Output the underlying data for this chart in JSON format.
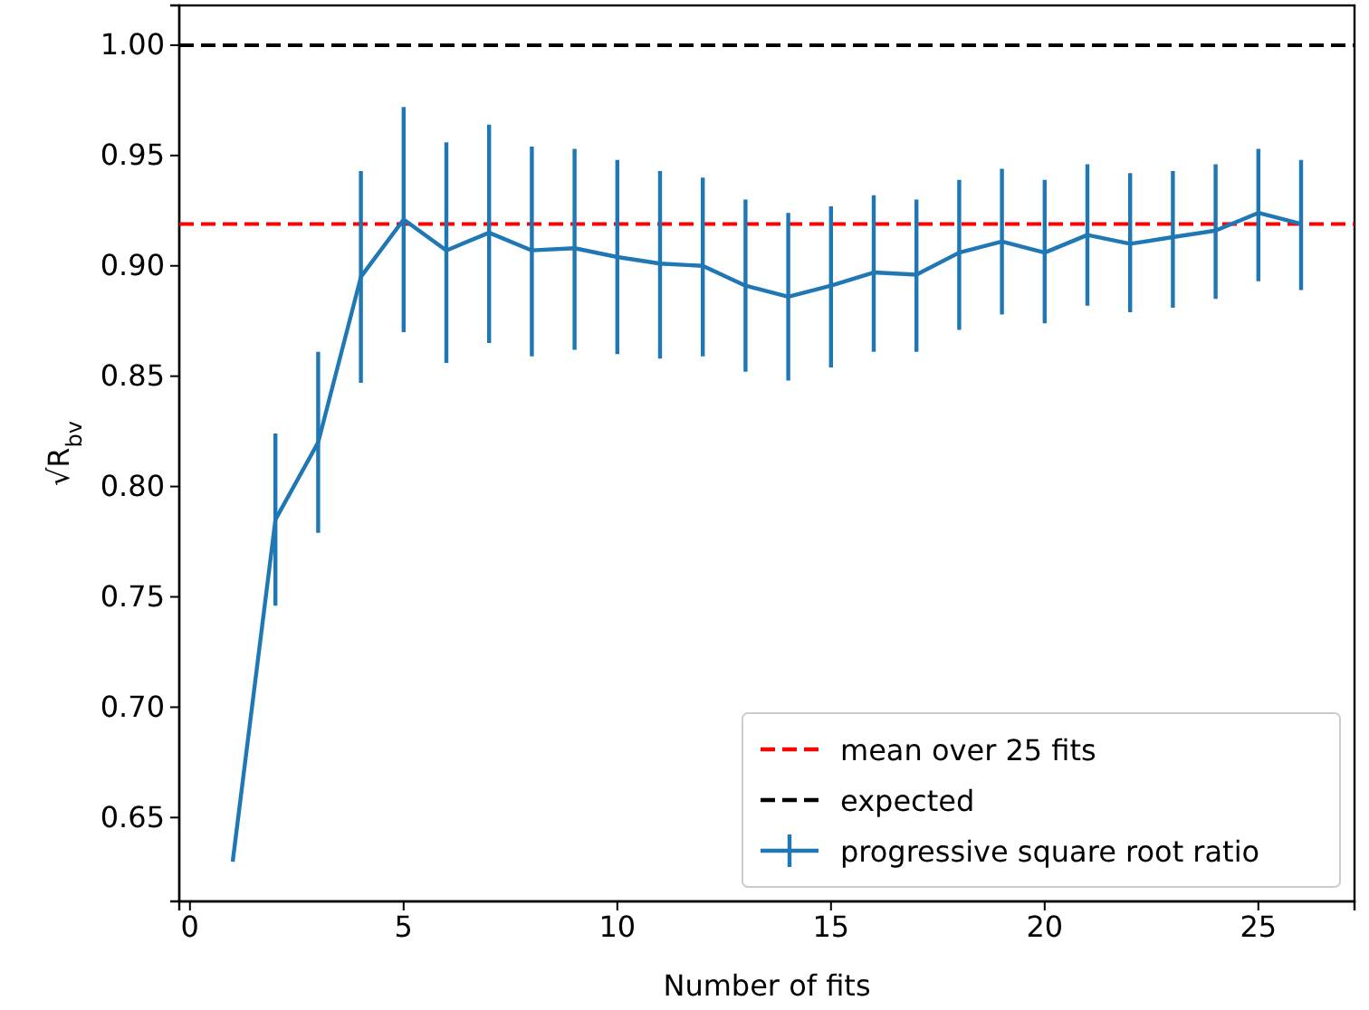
{
  "chart_data": {
    "type": "line",
    "xlabel": "Number of fits",
    "ylabel": "√R$_{bv}$",
    "x": [
      1,
      2,
      3,
      4,
      5,
      6,
      7,
      8,
      9,
      10,
      11,
      12,
      13,
      14,
      15,
      16,
      17,
      18,
      19,
      20,
      21,
      22,
      23,
      24,
      25,
      26
    ],
    "series": [
      {
        "name": "progressive square root ratio",
        "color": "#1f77b4",
        "values": [
          0.63,
          0.785,
          0.82,
          0.895,
          0.921,
          0.907,
          0.915,
          0.907,
          0.908,
          0.904,
          0.901,
          0.9,
          0.891,
          0.886,
          0.891,
          0.897,
          0.896,
          0.906,
          0.911,
          0.906,
          0.914,
          0.91,
          0.913,
          0.916,
          0.924,
          0.919
        ],
        "errors": [
          null,
          [
            0.746,
            0.824
          ],
          [
            0.779,
            0.861
          ],
          [
            0.847,
            0.943
          ],
          [
            0.87,
            0.972
          ],
          [
            0.856,
            0.956
          ],
          [
            0.865,
            0.964
          ],
          [
            0.859,
            0.954
          ],
          [
            0.862,
            0.953
          ],
          [
            0.86,
            0.948
          ],
          [
            0.858,
            0.943
          ],
          [
            0.859,
            0.94
          ],
          [
            0.852,
            0.93
          ],
          [
            0.848,
            0.924
          ],
          [
            0.854,
            0.927
          ],
          [
            0.861,
            0.932
          ],
          [
            0.861,
            0.93
          ],
          [
            0.871,
            0.939
          ],
          [
            0.878,
            0.944
          ],
          [
            0.874,
            0.939
          ],
          [
            0.882,
            0.946
          ],
          [
            0.879,
            0.942
          ],
          [
            0.881,
            0.943
          ],
          [
            0.885,
            0.946
          ],
          [
            0.893,
            0.953
          ],
          [
            0.889,
            0.948
          ]
        ]
      }
    ],
    "ref_lines": [
      {
        "axis": "y",
        "value": 0.919,
        "label": "mean over 25 fits",
        "color": "#ff0000",
        "line_style": "dashed"
      },
      {
        "axis": "y",
        "value": 1.0,
        "label": "expected",
        "color": "#000000",
        "line_style": "dashed"
      }
    ],
    "xlim": [
      -0.25,
      27.25
    ],
    "ylim": [
      0.612,
      1.018
    ],
    "xticks": [
      0,
      5,
      10,
      15,
      20,
      25
    ],
    "yticks": [
      {
        "value": 0.65,
        "label": "0.65"
      },
      {
        "value": 0.7,
        "label": "0.70"
      },
      {
        "value": 0.75,
        "label": "0.75"
      },
      {
        "value": 0.8,
        "label": "0.80"
      },
      {
        "value": 0.85,
        "label": "0.85"
      },
      {
        "value": 0.9,
        "label": "0.90"
      },
      {
        "value": 0.95,
        "label": "0.95"
      },
      {
        "value": 1.0,
        "label": "1.00"
      }
    ],
    "legend": "bottom right",
    "grid": false,
    "line_style": "solid",
    "marker": "none"
  }
}
